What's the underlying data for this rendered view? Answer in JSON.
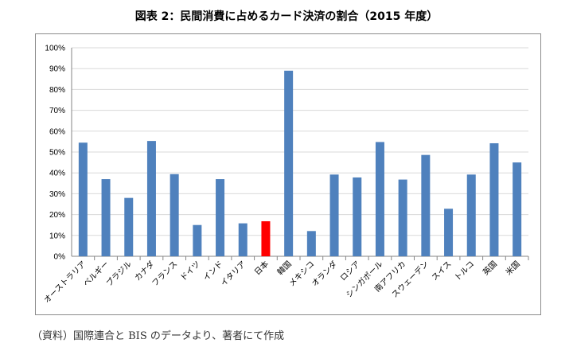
{
  "chart_data": {
    "type": "bar",
    "title": "図表 2：民間消費に占めるカード決済の割合（2015 年度）",
    "categories": [
      "オーストラリア",
      "ベルギー",
      "ブラジル",
      "カナダ",
      "フランス",
      "ドイツ",
      "インド",
      "イタリア",
      "日本",
      "韓国",
      "メキシコ",
      "オランダ",
      "ロシア",
      "シンガポール",
      "南アフリカ",
      "スウェーデン",
      "スイス",
      "トルコ",
      "英国",
      "米国"
    ],
    "series": [
      {
        "values": [
          54.5,
          37,
          28,
          55.3,
          39.4,
          15,
          37,
          15.8,
          16.8,
          89,
          12.1,
          39.2,
          37.8,
          54.8,
          36.8,
          48.6,
          22.8,
          39.2,
          54.2,
          45
        ]
      }
    ],
    "highlight_index": 8,
    "ylim": [
      0,
      100
    ],
    "yticks": [
      "0%",
      "10%",
      "20%",
      "30%",
      "40%",
      "50%",
      "60%",
      "70%",
      "80%",
      "90%",
      "100%"
    ],
    "grid": true,
    "colors": {
      "bar": "#4f81bd",
      "highlight": "#ff0000",
      "grid": "#d9d9d9"
    },
    "source": "（資料）国際連合と BIS のデータより、著者にて作成"
  }
}
